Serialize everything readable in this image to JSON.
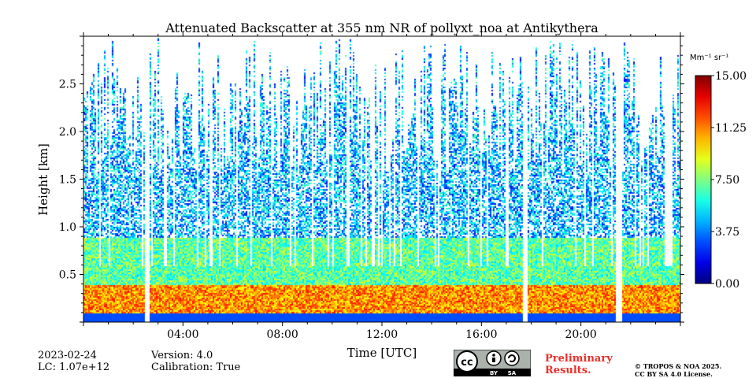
{
  "chart_data": {
    "type": "heatmap",
    "title": "Attenuated Backscatter at 355 nm NR of pollyxt_noa at Antikythera",
    "xlabel": "Time [UTC]",
    "ylabel": "Height [km]",
    "x_ticks": [
      "04:00",
      "08:00",
      "12:00",
      "16:00",
      "20:00"
    ],
    "x_tick_hours": [
      4,
      8,
      12,
      16,
      20
    ],
    "xlim_hours": [
      0,
      24
    ],
    "y_ticks": [
      "0.5",
      "1.0",
      "1.5",
      "2.0",
      "2.5"
    ],
    "y_tick_values": [
      0.5,
      1.0,
      1.5,
      2.0,
      2.5
    ],
    "ylim_km": [
      0,
      3.0
    ],
    "colorbar": {
      "label": "Mm⁻¹ sr⁻¹",
      "range": [
        0,
        15
      ],
      "ticks": [
        "0.00",
        "3.75",
        "7.50",
        "11.25",
        "15.00"
      ],
      "tick_values": [
        0,
        3.75,
        7.5,
        11.25,
        15
      ],
      "colormap": "jet"
    },
    "gaps_hours": [
      2.55,
      17.75,
      21.5
    ],
    "layers": [
      {
        "name": "near-surface",
        "height_km": [
          0,
          0.4
        ],
        "value_range": [
          9,
          13
        ]
      },
      {
        "name": "boundary-layer",
        "height_km": [
          0.4,
          0.9
        ],
        "value_range": [
          5,
          9
        ]
      },
      {
        "name": "upper",
        "height_km": [
          0.9,
          3.0
        ],
        "value_range": [
          2,
          7
        ]
      }
    ],
    "grid": false
  },
  "footer": {
    "date": "2023-02-24",
    "lc": "LC: 1.07e+12",
    "version": "Version: 4.0",
    "calibration": "Calibration: True",
    "preliminary_line1": "Preliminary",
    "preliminary_line2": "Results.",
    "preliminary_color": "#e8302a",
    "copyright_line1": "© TROPOS & NOA 2025.",
    "copyright_line2": "CC BY SA 4.0 License.",
    "license_badge": {
      "cc": "cc",
      "by": "BY",
      "sa": "SA"
    }
  }
}
